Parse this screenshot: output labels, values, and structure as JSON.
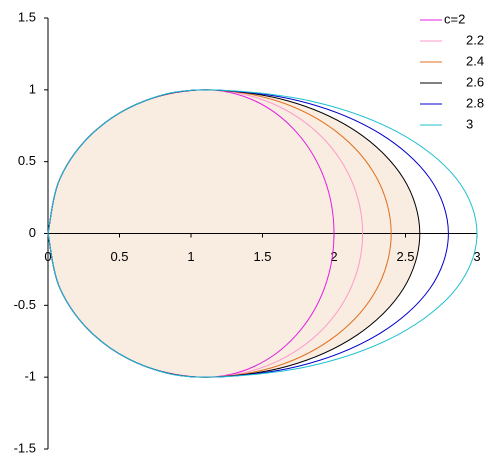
{
  "chart_data": {
    "type": "line",
    "xlim": [
      0,
      3
    ],
    "ylim": [
      -1.5,
      1.5
    ],
    "xticks": [
      0,
      0.5,
      1,
      1.5,
      2,
      2.5,
      3
    ],
    "yticks": [
      -1.5,
      -1,
      -0.5,
      0,
      0.5,
      1,
      1.5
    ],
    "legend": "top-right",
    "series": [
      {
        "name": "c=2",
        "color": "#e020e0",
        "x": [
          0,
          0.084,
          0.322,
          0.679,
          1.1,
          1.445,
          1.736,
          1.932,
          2.0,
          1.932,
          1.736,
          1.445,
          1.1,
          0.679,
          0.322,
          0.084,
          0
        ],
        "values": [
          0,
          0.383,
          0.707,
          0.924,
          1,
          0.924,
          0.707,
          0.383,
          0,
          -0.383,
          -0.707,
          -0.924,
          -1,
          -0.924,
          -0.707,
          -0.383,
          0
        ]
      },
      {
        "name": "2.2",
        "color": "#ff99cc",
        "x": [
          0,
          0.084,
          0.322,
          0.679,
          1.1,
          1.521,
          1.878,
          2.116,
          2.2,
          2.116,
          1.878,
          1.521,
          1.1,
          0.679,
          0.322,
          0.084,
          0
        ],
        "values": [
          0,
          0.383,
          0.707,
          0.924,
          1,
          0.924,
          0.707,
          0.383,
          0,
          -0.383,
          -0.707,
          -0.924,
          -1,
          -0.924,
          -0.707,
          -0.383,
          0
        ]
      },
      {
        "name": "2.4",
        "color": "#e07020",
        "x": [
          0,
          0.084,
          0.322,
          0.679,
          1.1,
          1.598,
          2.019,
          2.301,
          2.4,
          2.301,
          2.019,
          1.598,
          1.1,
          0.679,
          0.322,
          0.084,
          0
        ],
        "values": [
          0,
          0.383,
          0.707,
          0.924,
          1,
          0.924,
          0.707,
          0.383,
          0,
          -0.383,
          -0.707,
          -0.924,
          -1,
          -0.924,
          -0.707,
          -0.383,
          0
        ]
      },
      {
        "name": "2.6",
        "color": "#000000",
        "fill": "#f9ece1",
        "x": [
          0,
          0.084,
          0.322,
          0.679,
          1.1,
          1.675,
          2.161,
          2.486,
          2.6,
          2.486,
          2.161,
          1.675,
          1.1,
          0.679,
          0.322,
          0.084,
          0
        ],
        "values": [
          0,
          0.383,
          0.707,
          0.924,
          1,
          0.924,
          0.707,
          0.383,
          0,
          -0.383,
          -0.707,
          -0.924,
          -1,
          -0.924,
          -0.707,
          -0.383,
          0
        ]
      },
      {
        "name": "2.8",
        "color": "#0000cc",
        "x": [
          0,
          0.084,
          0.322,
          0.679,
          1.1,
          1.751,
          2.302,
          2.671,
          2.8,
          2.671,
          2.302,
          1.751,
          1.1,
          0.679,
          0.322,
          0.084,
          0
        ],
        "values": [
          0,
          0.383,
          0.707,
          0.924,
          1,
          0.924,
          0.707,
          0.383,
          0,
          -0.383,
          -0.707,
          -0.924,
          -1,
          -0.924,
          -0.707,
          -0.383,
          0
        ]
      },
      {
        "name": "3",
        "color": "#20c0d0",
        "x": [
          0,
          0.084,
          0.322,
          0.679,
          1.1,
          1.827,
          2.443,
          2.855,
          3.0,
          2.855,
          2.443,
          1.827,
          1.1,
          0.679,
          0.322,
          0.084,
          0
        ],
        "values": [
          0,
          0.383,
          0.707,
          0.924,
          1,
          0.924,
          0.707,
          0.383,
          0,
          -0.383,
          -0.707,
          -0.924,
          -1,
          -0.924,
          -0.707,
          -0.383,
          0
        ]
      }
    ]
  }
}
